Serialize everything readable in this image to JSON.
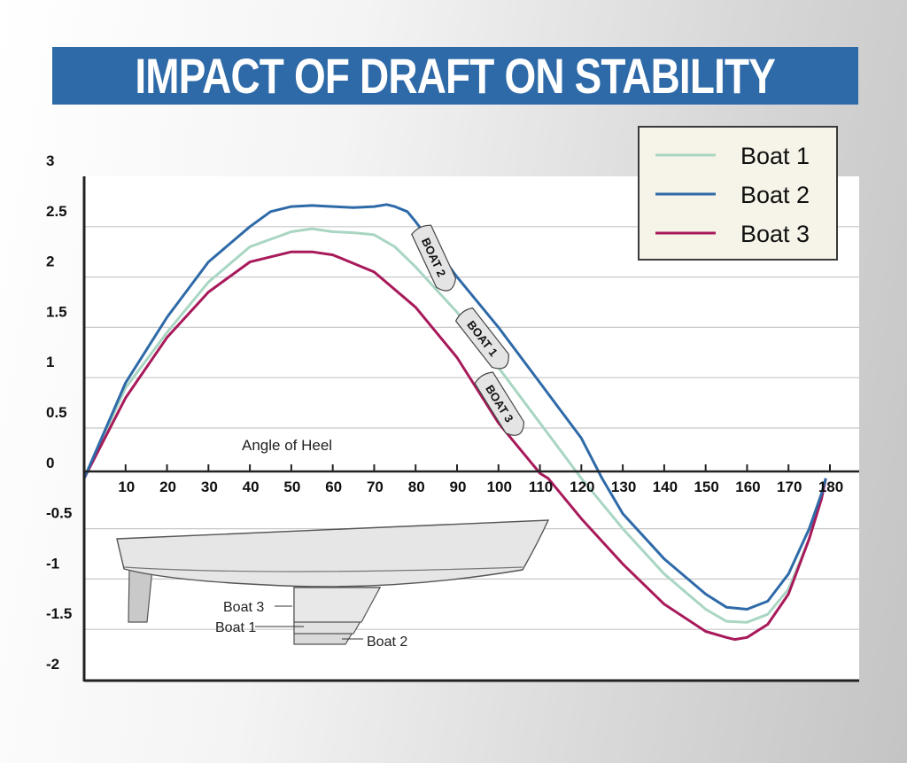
{
  "title": "IMPACT OF DRAFT ON STABILITY",
  "colors": {
    "banner": "#2e6aa8",
    "boat1": "#a9d6c2",
    "boat2": "#2e6aa8",
    "boat3": "#a8195a"
  },
  "chart_data": {
    "type": "line",
    "title": "IMPACT OF DRAFT ON STABILITY",
    "xlabel": "Angle of Heel",
    "ylabel": "",
    "xlim": [
      0,
      180
    ],
    "ylim": [
      -2,
      3
    ],
    "x_ticks": [
      "10",
      "20",
      "30",
      "40",
      "50",
      "60",
      "70",
      "80",
      "90",
      "100",
      "110",
      "120",
      "130",
      "140",
      "150",
      "160",
      "170",
      "180"
    ],
    "y_ticks": [
      "3",
      "2.5",
      "2",
      "1.5",
      "1",
      "0.5",
      "0",
      "-0.5",
      "-1",
      "-1.5",
      "-2"
    ],
    "grid": true,
    "legend_position": "top-right",
    "series": [
      {
        "name": "Boat 1",
        "tag": "BOAT 1",
        "points": [
          [
            0,
            0
          ],
          [
            10,
            0.9
          ],
          [
            20,
            1.45
          ],
          [
            30,
            1.95
          ],
          [
            40,
            2.3
          ],
          [
            50,
            2.45
          ],
          [
            55,
            2.48
          ],
          [
            60,
            2.45
          ],
          [
            65,
            2.44
          ],
          [
            70,
            2.42
          ],
          [
            75,
            2.3
          ],
          [
            80,
            2.1
          ],
          [
            90,
            1.65
          ],
          [
            100,
            1.1
          ],
          [
            110,
            0.55
          ],
          [
            120,
            0
          ],
          [
            130,
            -0.5
          ],
          [
            140,
            -0.95
          ],
          [
            150,
            -1.3
          ],
          [
            155,
            -1.42
          ],
          [
            160,
            -1.43
          ],
          [
            165,
            -1.35
          ],
          [
            170,
            -1.1
          ],
          [
            175,
            -0.6
          ],
          [
            178,
            -0.15
          ],
          [
            179,
            0
          ]
        ]
      },
      {
        "name": "Boat 2",
        "tag": "BOAT 2",
        "points": [
          [
            0,
            0
          ],
          [
            10,
            0.95
          ],
          [
            20,
            1.6
          ],
          [
            30,
            2.15
          ],
          [
            40,
            2.5
          ],
          [
            45,
            2.65
          ],
          [
            50,
            2.7
          ],
          [
            55,
            2.71
          ],
          [
            60,
            2.7
          ],
          [
            65,
            2.69
          ],
          [
            70,
            2.7
          ],
          [
            73,
            2.72
          ],
          [
            75,
            2.7
          ],
          [
            78,
            2.65
          ],
          [
            80,
            2.55
          ],
          [
            90,
            2.0
          ],
          [
            100,
            1.5
          ],
          [
            110,
            0.95
          ],
          [
            120,
            0.4
          ],
          [
            125,
            0
          ],
          [
            130,
            -0.35
          ],
          [
            140,
            -0.8
          ],
          [
            150,
            -1.15
          ],
          [
            155,
            -1.28
          ],
          [
            160,
            -1.3
          ],
          [
            165,
            -1.22
          ],
          [
            170,
            -0.95
          ],
          [
            175,
            -0.5
          ],
          [
            178,
            -0.15
          ],
          [
            179,
            0
          ]
        ]
      },
      {
        "name": "Boat 3",
        "tag": "BOAT 3",
        "points": [
          [
            0,
            0
          ],
          [
            10,
            0.8
          ],
          [
            20,
            1.4
          ],
          [
            30,
            1.85
          ],
          [
            40,
            2.15
          ],
          [
            50,
            2.25
          ],
          [
            55,
            2.25
          ],
          [
            60,
            2.22
          ],
          [
            70,
            2.05
          ],
          [
            80,
            1.7
          ],
          [
            90,
            1.2
          ],
          [
            100,
            0.55
          ],
          [
            110,
            0.05
          ],
          [
            112,
            0
          ],
          [
            120,
            -0.4
          ],
          [
            130,
            -0.85
          ],
          [
            140,
            -1.25
          ],
          [
            150,
            -1.52
          ],
          [
            155,
            -1.58
          ],
          [
            157,
            -1.6
          ],
          [
            160,
            -1.58
          ],
          [
            165,
            -1.45
          ],
          [
            170,
            -1.15
          ],
          [
            175,
            -0.6
          ],
          [
            178,
            -0.2
          ],
          [
            179,
            0
          ]
        ]
      }
    ]
  },
  "keel_diagram": {
    "labels": [
      "Boat 3",
      "Boat 1",
      "Boat 2"
    ]
  }
}
